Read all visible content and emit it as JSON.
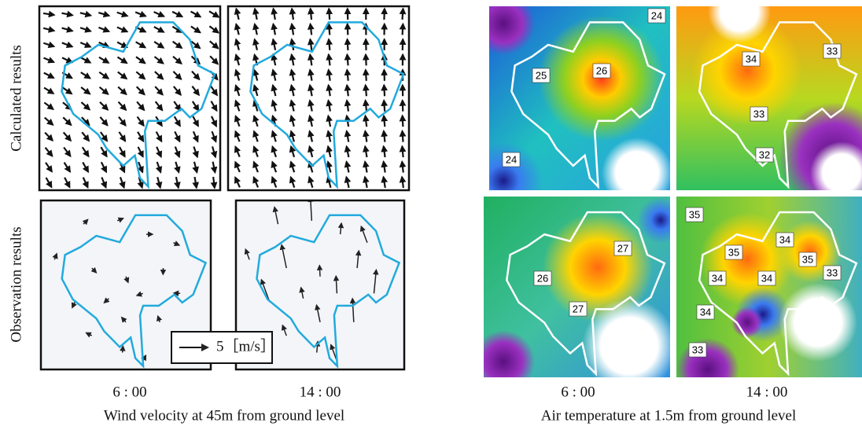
{
  "wind": {
    "row_labels": [
      "Calculated results",
      "Observation results"
    ],
    "times": [
      "6 : 00",
      "14 : 00"
    ],
    "scale_label": "5［m/s］",
    "caption": "Wind velocity at 45m from ground level"
  },
  "temperature": {
    "times": [
      "6 : 00",
      "14 : 00"
    ],
    "caption": "Air temperature at 1.5m from ground level",
    "panels": [
      {
        "labels": [
          "24",
          "25",
          "26",
          "24"
        ]
      },
      {
        "labels": [
          "34",
          "33",
          "33",
          "32"
        ]
      },
      {
        "labels": [
          "27",
          "26",
          "27"
        ]
      },
      {
        "labels": [
          "35",
          "34",
          "35",
          "35",
          "34",
          "34",
          "33",
          "34",
          "33"
        ]
      }
    ]
  }
}
